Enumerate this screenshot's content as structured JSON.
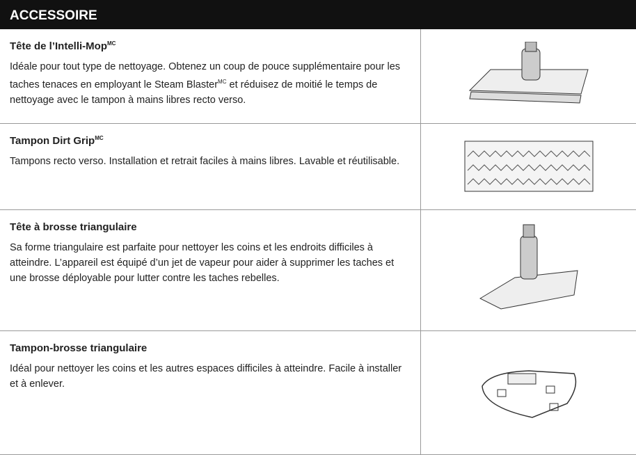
{
  "header": {
    "title": "ACCESSOIRE"
  },
  "rows": [
    {
      "title": [
        {
          "text": "Tête de l’Intelli-Mop"
        },
        {
          "sup": "MC"
        }
      ],
      "description": [
        {
          "text": "Idéale pour tout type de nettoyage. Obtenez un coup de pouce supplémentaire pour les taches tenaces en employant le Steam Blaster"
        },
        {
          "sup": "MC"
        },
        {
          "text": " et réduisez de moitié le temps de nettoyage avec le tampon à mains libres recto verso."
        }
      ]
    },
    {
      "title": [
        {
          "text": "Tampon Dirt Grip"
        },
        {
          "sup": "MC"
        }
      ],
      "description": [
        {
          "text": "Tampons recto verso. Installation et retrait faciles à mains libres. Lavable et réutilisable."
        }
      ]
    },
    {
      "title": [
        {
          "text": "Tête à brosse triangulaire"
        }
      ],
      "description": [
        {
          "text": "Sa forme triangulaire est parfaite pour nettoyer les coins et les endroits difficiles à atteindre. L’appareil est équipé d’un jet de vapeur pour aider à supprimer les taches et une brosse déployable pour lutter contre les taches rebelles."
        }
      ]
    },
    {
      "title": [
        {
          "text": "Tampon-brosse triangulaire"
        }
      ],
      "description": [
        {
          "text": "Idéal pour nettoyer les coins et les autres espaces difficiles à atteindre. Facile à installer et à enlever."
        }
      ]
    }
  ]
}
